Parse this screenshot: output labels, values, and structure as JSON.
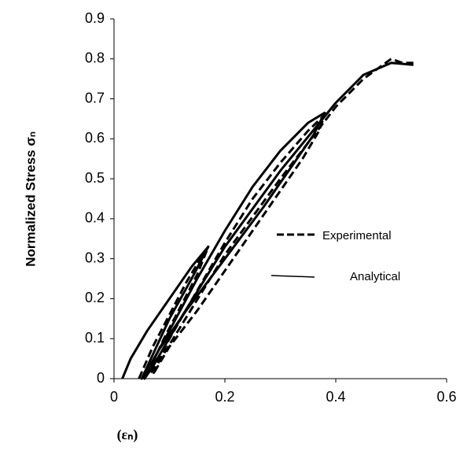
{
  "chart_data": {
    "type": "line",
    "y_label": "Normalized Stress σₙ",
    "x_label": "(εₙ)",
    "xlim": [
      0,
      0.6
    ],
    "xticks": [
      0,
      0.2,
      0.4,
      0.6
    ],
    "ylim": [
      0,
      0.9
    ],
    "yticks": [
      0,
      0.1,
      0.2,
      0.3,
      0.4,
      0.5,
      0.6,
      0.7,
      0.8,
      0.9
    ],
    "series": [
      {
        "name": "Experimental",
        "color": "#000000",
        "dashed": true,
        "x": [
          0.045,
          0.07,
          0.1,
          0.13,
          0.16,
          0.17,
          0.15,
          0.12,
          0.09,
          0.06,
          0.07,
          0.1,
          0.15,
          0.2,
          0.25,
          0.3,
          0.35,
          0.38,
          0.37,
          0.34,
          0.3,
          0.25,
          0.2,
          0.15,
          0.1,
          0.07,
          0.08,
          0.12,
          0.2,
          0.3,
          0.4,
          0.45,
          0.49,
          0.5,
          0.52,
          0.54
        ],
        "values": [
          0,
          0.08,
          0.16,
          0.24,
          0.31,
          0.33,
          0.26,
          0.18,
          0.1,
          0.01,
          0.02,
          0.1,
          0.22,
          0.34,
          0.45,
          0.54,
          0.62,
          0.66,
          0.62,
          0.55,
          0.47,
          0.37,
          0.27,
          0.17,
          0.08,
          0.01,
          0.04,
          0.13,
          0.31,
          0.5,
          0.68,
          0.75,
          0.79,
          0.8,
          0.79,
          0.79
        ]
      },
      {
        "name": "Analytical",
        "color": "#000000",
        "dashed": false,
        "x": [
          0.015,
          0.03,
          0.06,
          0.1,
          0.14,
          0.17,
          0.14,
          0.1,
          0.07,
          0.05,
          0.06,
          0.1,
          0.15,
          0.2,
          0.25,
          0.3,
          0.35,
          0.38,
          0.36,
          0.32,
          0.27,
          0.2,
          0.13,
          0.08,
          0.055,
          0.07,
          0.12,
          0.2,
          0.3,
          0.4,
          0.45,
          0.5,
          0.54
        ],
        "values": [
          0,
          0.05,
          0.12,
          0.2,
          0.28,
          0.33,
          0.25,
          0.15,
          0.06,
          0,
          0.02,
          0.12,
          0.25,
          0.37,
          0.48,
          0.57,
          0.64,
          0.665,
          0.61,
          0.53,
          0.43,
          0.3,
          0.17,
          0.07,
          0,
          0.03,
          0.15,
          0.33,
          0.52,
          0.69,
          0.76,
          0.79,
          0.785
        ]
      }
    ]
  }
}
